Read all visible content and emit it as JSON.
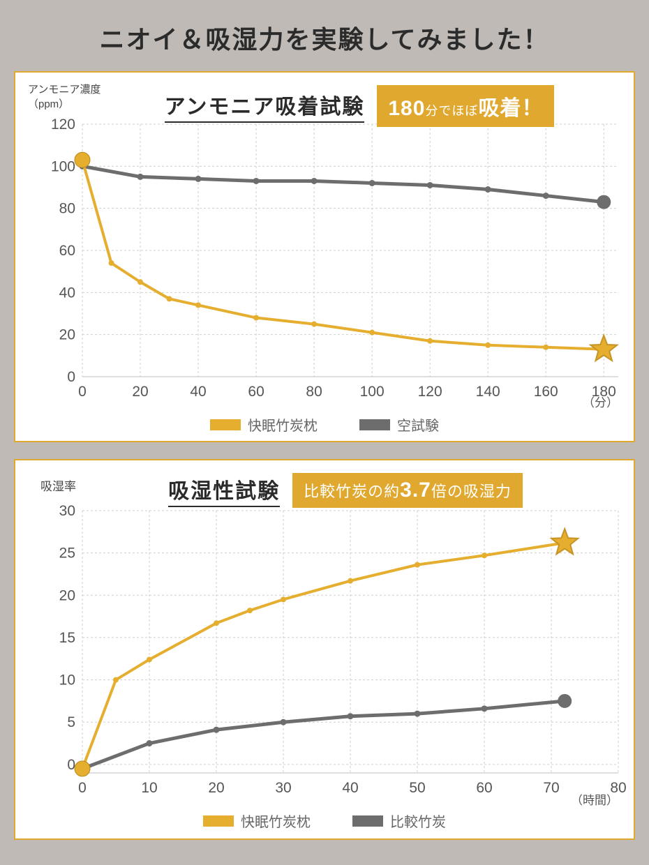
{
  "page_title": "ニオイ＆吸湿力を実験してみました！",
  "colors": {
    "page_bg": "#bfbab6",
    "panel_bg": "#ffffff",
    "panel_border": "#e0a82e",
    "primary": "#e0a82e",
    "primary_line": "#e5ae2f",
    "secondary": "#6d6d6d",
    "grid": "#cfcfcf",
    "grid_dash": "3,3",
    "text_dark": "#2b2b2b",
    "text_muted": "#666666",
    "axis": "#444444"
  },
  "chart1": {
    "type": "line",
    "y_label_line1": "アンモニア濃度",
    "y_label_line2": "（ppm）",
    "title": "アンモニア吸着試験",
    "badge_parts": [
      "180",
      "分でほぼ",
      "吸着！"
    ],
    "x_ticks": [
      0,
      20,
      40,
      60,
      80,
      100,
      120,
      140,
      160,
      180
    ],
    "y_ticks": [
      0,
      20,
      40,
      60,
      80,
      100,
      120
    ],
    "x_unit": "（分）",
    "xlim": [
      0,
      185
    ],
    "ylim": [
      0,
      120
    ],
    "series": {
      "primary": {
        "label": "快眠竹炭枕",
        "color": "#e5ae2f",
        "line_width": 4,
        "marker": "circle",
        "marker_r": 4,
        "start_marker_r": 11,
        "end_marker": "star",
        "end_marker_size": 20,
        "data": [
          [
            0,
            103
          ],
          [
            10,
            54
          ],
          [
            20,
            45
          ],
          [
            30,
            37
          ],
          [
            40,
            34
          ],
          [
            60,
            28
          ],
          [
            80,
            25
          ],
          [
            100,
            21
          ],
          [
            120,
            17
          ],
          [
            140,
            15
          ],
          [
            160,
            14
          ],
          [
            180,
            13
          ]
        ]
      },
      "secondary": {
        "label": "空試験",
        "color": "#6d6d6d",
        "line_width": 5,
        "marker": "circle",
        "marker_r": 4.5,
        "end_marker_r": 10,
        "data": [
          [
            0,
            100
          ],
          [
            20,
            95
          ],
          [
            40,
            94
          ],
          [
            60,
            93
          ],
          [
            80,
            93
          ],
          [
            100,
            92
          ],
          [
            120,
            91
          ],
          [
            140,
            89
          ],
          [
            160,
            86
          ],
          [
            180,
            83
          ]
        ]
      }
    },
    "legend": [
      {
        "swatch": "#e5ae2f",
        "label": "快眠竹炭枕"
      },
      {
        "swatch": "#6d6d6d",
        "label": "空試験"
      }
    ]
  },
  "chart2": {
    "type": "line",
    "y_label": "吸湿率",
    "title": "吸湿性試験",
    "badge_parts": [
      "比較竹炭の約",
      "3.7",
      "倍の吸湿力"
    ],
    "x_ticks": [
      0,
      10,
      20,
      30,
      40,
      50,
      60,
      70,
      80
    ],
    "y_ticks": [
      0,
      5,
      10,
      15,
      20,
      25,
      30
    ],
    "x_unit": "（時間）",
    "xlim": [
      0,
      80
    ],
    "ylim": [
      -1,
      30
    ],
    "series": {
      "primary": {
        "label": "快眠竹炭枕",
        "color": "#e5ae2f",
        "line_width": 4,
        "marker": "circle",
        "marker_r": 4,
        "start_marker_r": 11,
        "end_marker": "star",
        "end_marker_size": 20,
        "data": [
          [
            0,
            -0.5
          ],
          [
            5,
            10
          ],
          [
            10,
            12.4
          ],
          [
            20,
            16.7
          ],
          [
            25,
            18.2
          ],
          [
            30,
            19.5
          ],
          [
            40,
            21.7
          ],
          [
            50,
            23.6
          ],
          [
            60,
            24.7
          ],
          [
            72,
            26.2
          ]
        ]
      },
      "secondary": {
        "label": "比較竹炭",
        "color": "#6d6d6d",
        "line_width": 5,
        "marker": "circle",
        "marker_r": 4.5,
        "end_marker_r": 10,
        "data": [
          [
            0,
            -0.5
          ],
          [
            10,
            2.5
          ],
          [
            20,
            4.1
          ],
          [
            30,
            5.0
          ],
          [
            40,
            5.7
          ],
          [
            50,
            6.0
          ],
          [
            60,
            6.6
          ],
          [
            72,
            7.5
          ]
        ]
      }
    },
    "legend": [
      {
        "swatch": "#e5ae2f",
        "label": "快眠竹炭枕"
      },
      {
        "swatch": "#6d6d6d",
        "label": "比較竹炭"
      }
    ]
  },
  "typography": {
    "page_title_size": 36,
    "chart_title_size": 30,
    "badge_size": 22,
    "badge_big_size": 30,
    "tick_size": 21,
    "legend_size": 20,
    "axis_label_size": 15
  }
}
